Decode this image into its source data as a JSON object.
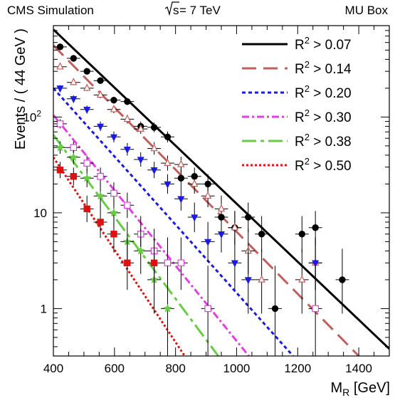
{
  "header": {
    "left": "CMS Simulation",
    "energy_sqrt": "s",
    "energy_rest": " = 7 TeV",
    "right": "MU Box"
  },
  "chart_data": {
    "type": "scatter",
    "xlabel_main": "M",
    "xlabel_sub": "R",
    "xlabel_unit": " [GeV]",
    "ylabel": "Events / ( 44 GeV )",
    "xlim": [
      400,
      1500
    ],
    "ylim": [
      0.32,
      900
    ],
    "yscale": "log",
    "bin_width": 44,
    "x_ticks": [
      {
        "value": 400,
        "label": "400"
      },
      {
        "value": 600,
        "label": "600"
      },
      {
        "value": 800,
        "label": "800"
      },
      {
        "value": 1000,
        "label": "1000"
      },
      {
        "value": 1200,
        "label": "1200"
      },
      {
        "value": 1400,
        "label": "1400"
      }
    ],
    "y_ticks": [
      {
        "value": 1,
        "label": "1"
      },
      {
        "value": 10,
        "label": "10"
      },
      {
        "value": 100,
        "label": "10",
        "exp": "2"
      }
    ],
    "legend_position": "top-right",
    "series": [
      {
        "name_base": "R",
        "name_exp": "2",
        "name_rest": " > 0.07",
        "color": "#000000",
        "dash": "",
        "marker": "circle",
        "fit": {
          "x1": 400,
          "y1": 820,
          "x2": 1500,
          "y2": 0.38
        },
        "points": [
          [
            422,
            540
          ],
          [
            466,
            410
          ],
          [
            510,
            300
          ],
          [
            554,
            240
          ],
          [
            598,
            150
          ],
          [
            642,
            145
          ],
          [
            686,
            80
          ],
          [
            730,
            78
          ],
          [
            774,
            62
          ],
          [
            818,
            23
          ],
          [
            862,
            24
          ],
          [
            906,
            20
          ],
          [
            950,
            9
          ],
          [
            994,
            7
          ],
          [
            1038,
            9
          ],
          [
            1082,
            6
          ],
          [
            1126,
            1
          ],
          [
            1214,
            6
          ],
          [
            1258,
            7
          ],
          [
            1346,
            2
          ]
        ]
      },
      {
        "name_base": "R",
        "name_exp": "2",
        "name_rest": " > 0.14",
        "color": "#c0605e",
        "dash": "20,10",
        "marker": "triangle-up-open",
        "fit": {
          "x1": 400,
          "y1": 560,
          "x2": 1400,
          "y2": 0.32
        },
        "points": [
          [
            422,
            335
          ],
          [
            466,
            230
          ],
          [
            510,
            200
          ],
          [
            554,
            170
          ],
          [
            598,
            120
          ],
          [
            642,
            95
          ],
          [
            686,
            75
          ],
          [
            730,
            47
          ],
          [
            774,
            33
          ],
          [
            818,
            32
          ],
          [
            862,
            20
          ],
          [
            906,
            15
          ],
          [
            950,
            11
          ],
          [
            994,
            7
          ],
          [
            1038,
            4
          ],
          [
            1082,
            2
          ],
          [
            1214,
            2
          ],
          [
            1258,
            3
          ]
        ]
      },
      {
        "name_base": "R",
        "name_exp": "2",
        "name_rest": " > 0.20",
        "color": "#1a1ae6",
        "dash": "5,4",
        "marker": "triangle-down",
        "fit": {
          "x1": 400,
          "y1": 200,
          "x2": 1185,
          "y2": 0.32
        },
        "points": [
          [
            422,
            200
          ],
          [
            466,
            155
          ],
          [
            510,
            120
          ],
          [
            554,
            80
          ],
          [
            598,
            62
          ],
          [
            642,
            46
          ],
          [
            686,
            36
          ],
          [
            730,
            28
          ],
          [
            774,
            20
          ],
          [
            818,
            14
          ],
          [
            862,
            9
          ],
          [
            906,
            5
          ],
          [
            950,
            6
          ],
          [
            994,
            3
          ],
          [
            1038,
            2
          ],
          [
            1258,
            3
          ]
        ]
      },
      {
        "name_base": "R",
        "name_exp": "2",
        "name_rest": " > 0.30",
        "color": "#e040e0",
        "dash": "10,4,3,4",
        "marker": "square-open",
        "fit": {
          "x1": 400,
          "y1": 105,
          "x2": 1040,
          "y2": 0.32
        },
        "points": [
          [
            422,
            85
          ],
          [
            466,
            48
          ],
          [
            510,
            33
          ],
          [
            554,
            24
          ],
          [
            598,
            16
          ],
          [
            642,
            12
          ],
          [
            686,
            6
          ],
          [
            730,
            4
          ],
          [
            774,
            3
          ],
          [
            818,
            3
          ],
          [
            906,
            1
          ],
          [
            1258,
            1
          ]
        ]
      },
      {
        "name_base": "R",
        "name_exp": "2",
        "name_rest": " > 0.38",
        "color": "#66cc44",
        "dash": "20,6,5,6",
        "marker": "star",
        "fit": {
          "x1": 400,
          "y1": 65,
          "x2": 940,
          "y2": 0.32
        },
        "points": [
          [
            422,
            48
          ],
          [
            466,
            38
          ],
          [
            510,
            23
          ],
          [
            554,
            15
          ],
          [
            598,
            10
          ],
          [
            642,
            5
          ],
          [
            686,
            4
          ],
          [
            730,
            2
          ],
          [
            774,
            1
          ]
        ]
      },
      {
        "name_base": "R",
        "name_exp": "2",
        "name_rest": " > 0.50",
        "color": "#dd1111",
        "dash": "3,3",
        "marker": "square",
        "fit": {
          "x1": 400,
          "y1": 38,
          "x2": 830,
          "y2": 0.32
        },
        "points": [
          [
            422,
            28
          ],
          [
            466,
            24
          ],
          [
            510,
            11
          ],
          [
            554,
            8
          ],
          [
            598,
            6
          ],
          [
            642,
            3
          ],
          [
            730,
            3
          ]
        ]
      }
    ]
  }
}
